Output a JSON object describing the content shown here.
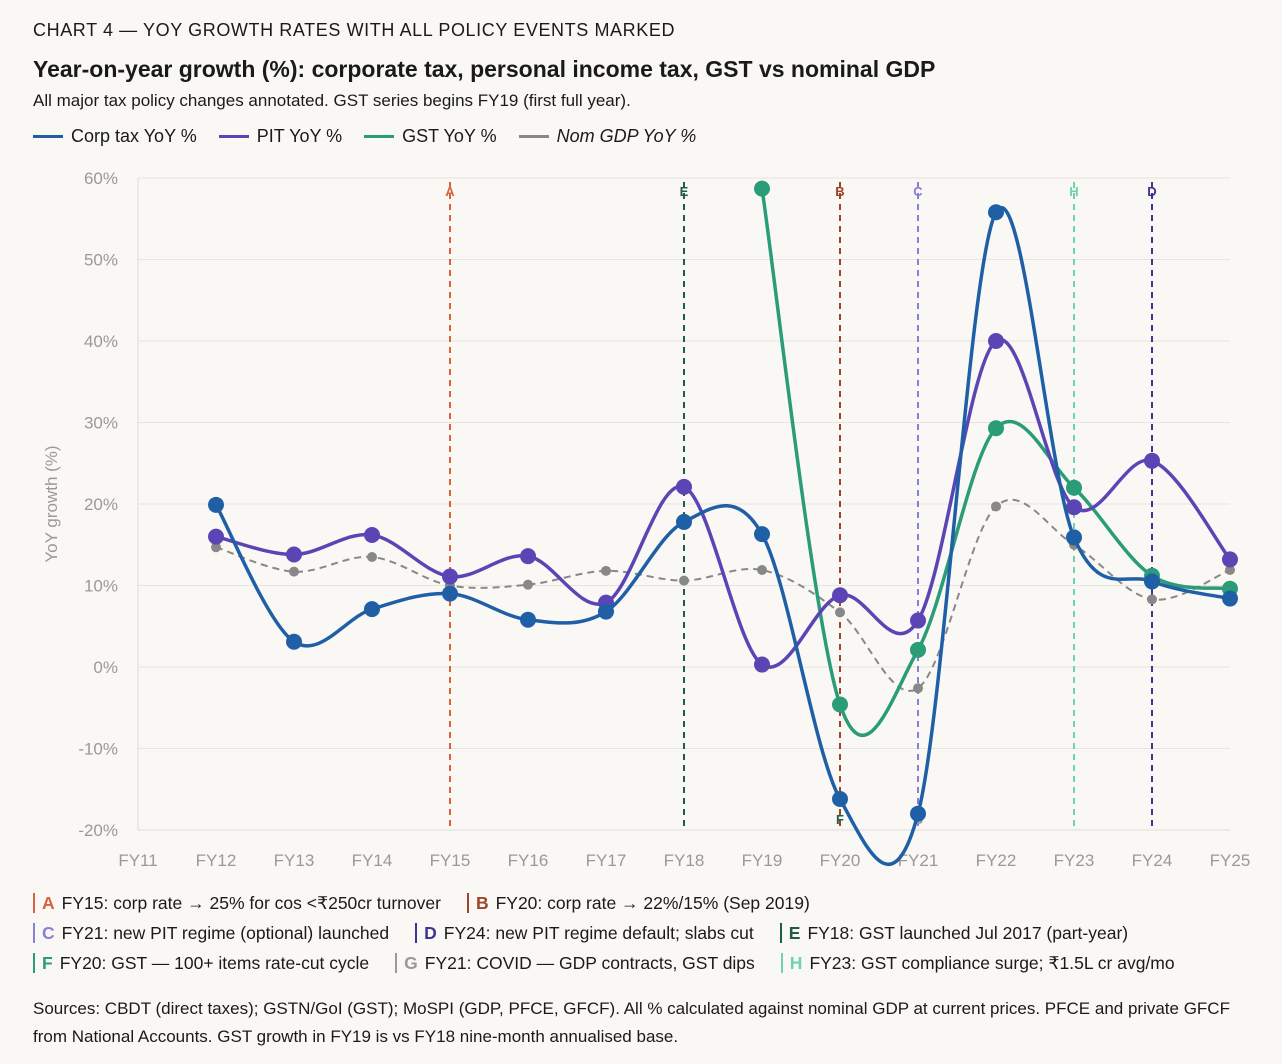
{
  "kicker": "CHART 4 — YOY GROWTH RATES WITH ALL POLICY EVENTS MARKED",
  "title": "Year-on-year growth (%): corporate tax, personal income tax, GST vs nominal GDP",
  "subtitle": "All major tax policy changes annotated. GST series begins FY19 (first full year).",
  "notes": [
    {
      "letter": "A",
      "text": "FY15: corp rate → 25% for cos <₹250cr turnover",
      "color": "#d9623b"
    },
    {
      "letter": "B",
      "text": "FY20: corp rate → 22%/15% (Sep 2019)",
      "color": "#a0432a"
    },
    {
      "letter": "C",
      "text": "FY21: new PIT regime (optional) launched",
      "color": "#8a7fd6"
    },
    {
      "letter": "D",
      "text": "FY24: new PIT regime default; slabs cut",
      "color": "#3d3590"
    },
    {
      "letter": "E",
      "text": "FY18: GST launched Jul 2017 (part-year)",
      "color": "#1f5e45"
    },
    {
      "letter": "F",
      "text": "FY20: GST — 100+ items rate-cut cycle",
      "color": "#2a9d78"
    },
    {
      "letter": "G",
      "text": "FY21: COVID — GDP contracts, GST dips",
      "color": "#999999"
    },
    {
      "letter": "H",
      "text": "FY23: GST compliance surge; ₹1.5L cr avg/mo",
      "color": "#6fd4ac"
    }
  ],
  "sources": "Sources: CBDT (direct taxes); GSTN/GoI (GST); MoSPI (GDP, PFCE, GFCF). All % calculated against nominal GDP at current prices. PFCE and private GFCF from National Accounts. GST growth in FY19 is vs FY18 nine-month annualised base.",
  "chart_data": {
    "type": "line",
    "ylabel": "YoY growth (%)",
    "ylim": [
      -20,
      60
    ],
    "yticks": [
      -20,
      -10,
      0,
      10,
      20,
      30,
      40,
      50,
      60
    ],
    "ytick_labels": [
      "-20%",
      "-10%",
      "0%",
      "10%",
      "20%",
      "30%",
      "40%",
      "50%",
      "60%"
    ],
    "categories": [
      "FY11",
      "FY12",
      "FY13",
      "FY14",
      "FY15",
      "FY16",
      "FY17",
      "FY18",
      "FY19",
      "FY20",
      "FY21",
      "FY22",
      "FY23",
      "FY24",
      "FY25"
    ],
    "grid": true,
    "legend_position": "top-left",
    "series": [
      {
        "name": "Corp tax YoY %",
        "color": "#1f5fa6",
        "dashed": false,
        "values": [
          null,
          19.9,
          3.1,
          7.1,
          9.0,
          5.8,
          6.8,
          17.8,
          16.3,
          -16.2,
          -18.0,
          55.8,
          15.9,
          10.5,
          8.4
        ]
      },
      {
        "name": "PIT YoY %",
        "color": "#5b45b5",
        "dashed": false,
        "values": [
          null,
          16.0,
          13.8,
          16.2,
          11.1,
          13.6,
          7.9,
          22.1,
          0.3,
          8.8,
          5.7,
          40.0,
          19.6,
          25.3,
          13.2
        ]
      },
      {
        "name": "GST YoY %",
        "color": "#2a9d78",
        "dashed": false,
        "values": [
          null,
          null,
          null,
          null,
          null,
          null,
          null,
          null,
          58.7,
          -4.6,
          2.1,
          29.3,
          22.0,
          11.2,
          9.6
        ]
      },
      {
        "name": "Nom GDP YoY %",
        "color": "#888888",
        "dashed": true,
        "values": [
          null,
          14.7,
          11.7,
          13.5,
          10.0,
          10.1,
          11.8,
          10.6,
          11.9,
          6.7,
          -2.6,
          19.7,
          15.0,
          8.3,
          11.9
        ]
      }
    ],
    "events": [
      {
        "letter": "A",
        "category": "FY15",
        "color": "#d9623b",
        "pos": "top"
      },
      {
        "letter": "E",
        "category": "FY18",
        "color": "#1f5e45",
        "pos": "top"
      },
      {
        "letter": "B",
        "category": "FY20",
        "color": "#a0432a",
        "pos": "top"
      },
      {
        "letter": "F",
        "category": "FY20",
        "color": "#1f5e45",
        "pos": "bottom"
      },
      {
        "letter": "C",
        "category": "FY21",
        "color": "#8a7fd6",
        "pos": "top"
      },
      {
        "letter": "G",
        "category": "FY21",
        "color": "#999999",
        "pos": "bottom"
      },
      {
        "letter": "H",
        "category": "FY23",
        "color": "#6fd4ac",
        "pos": "top"
      },
      {
        "letter": "D",
        "category": "FY24",
        "color": "#3d3590",
        "pos": "top"
      }
    ]
  }
}
